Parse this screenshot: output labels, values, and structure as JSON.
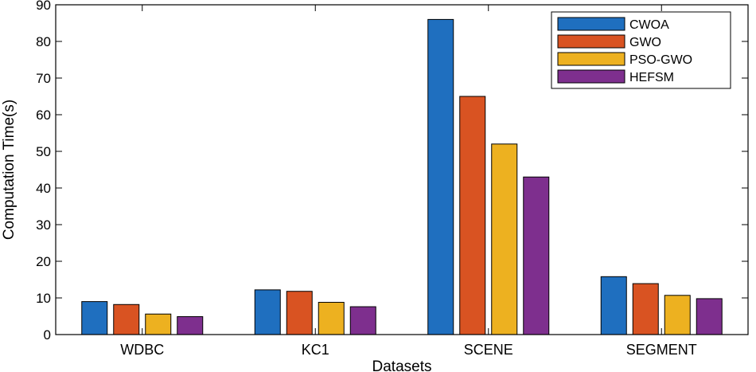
{
  "chart_data": {
    "type": "bar",
    "title": "",
    "xlabel": "Datasets",
    "ylabel": "Computation Time(s)",
    "ylim": [
      0,
      90
    ],
    "yticks": [
      0,
      10,
      20,
      30,
      40,
      50,
      60,
      70,
      80,
      90
    ],
    "categories": [
      "WDBC",
      "KC1",
      "SCENE",
      "SEGMENT"
    ],
    "legend_position": "top-right",
    "series": [
      {
        "name": "CWOA",
        "color": "#1f6fbf",
        "values": [
          9,
          12.2,
          86,
          15.8
        ]
      },
      {
        "name": "GWO",
        "color": "#d95322",
        "values": [
          8.2,
          11.8,
          65,
          13.9
        ]
      },
      {
        "name": "PSO-GWO",
        "color": "#edb120",
        "values": [
          5.6,
          8.8,
          52,
          10.7
        ]
      },
      {
        "name": "HEFSM",
        "color": "#7e2f8e",
        "values": [
          4.9,
          7.6,
          43,
          9.8
        ]
      }
    ]
  }
}
